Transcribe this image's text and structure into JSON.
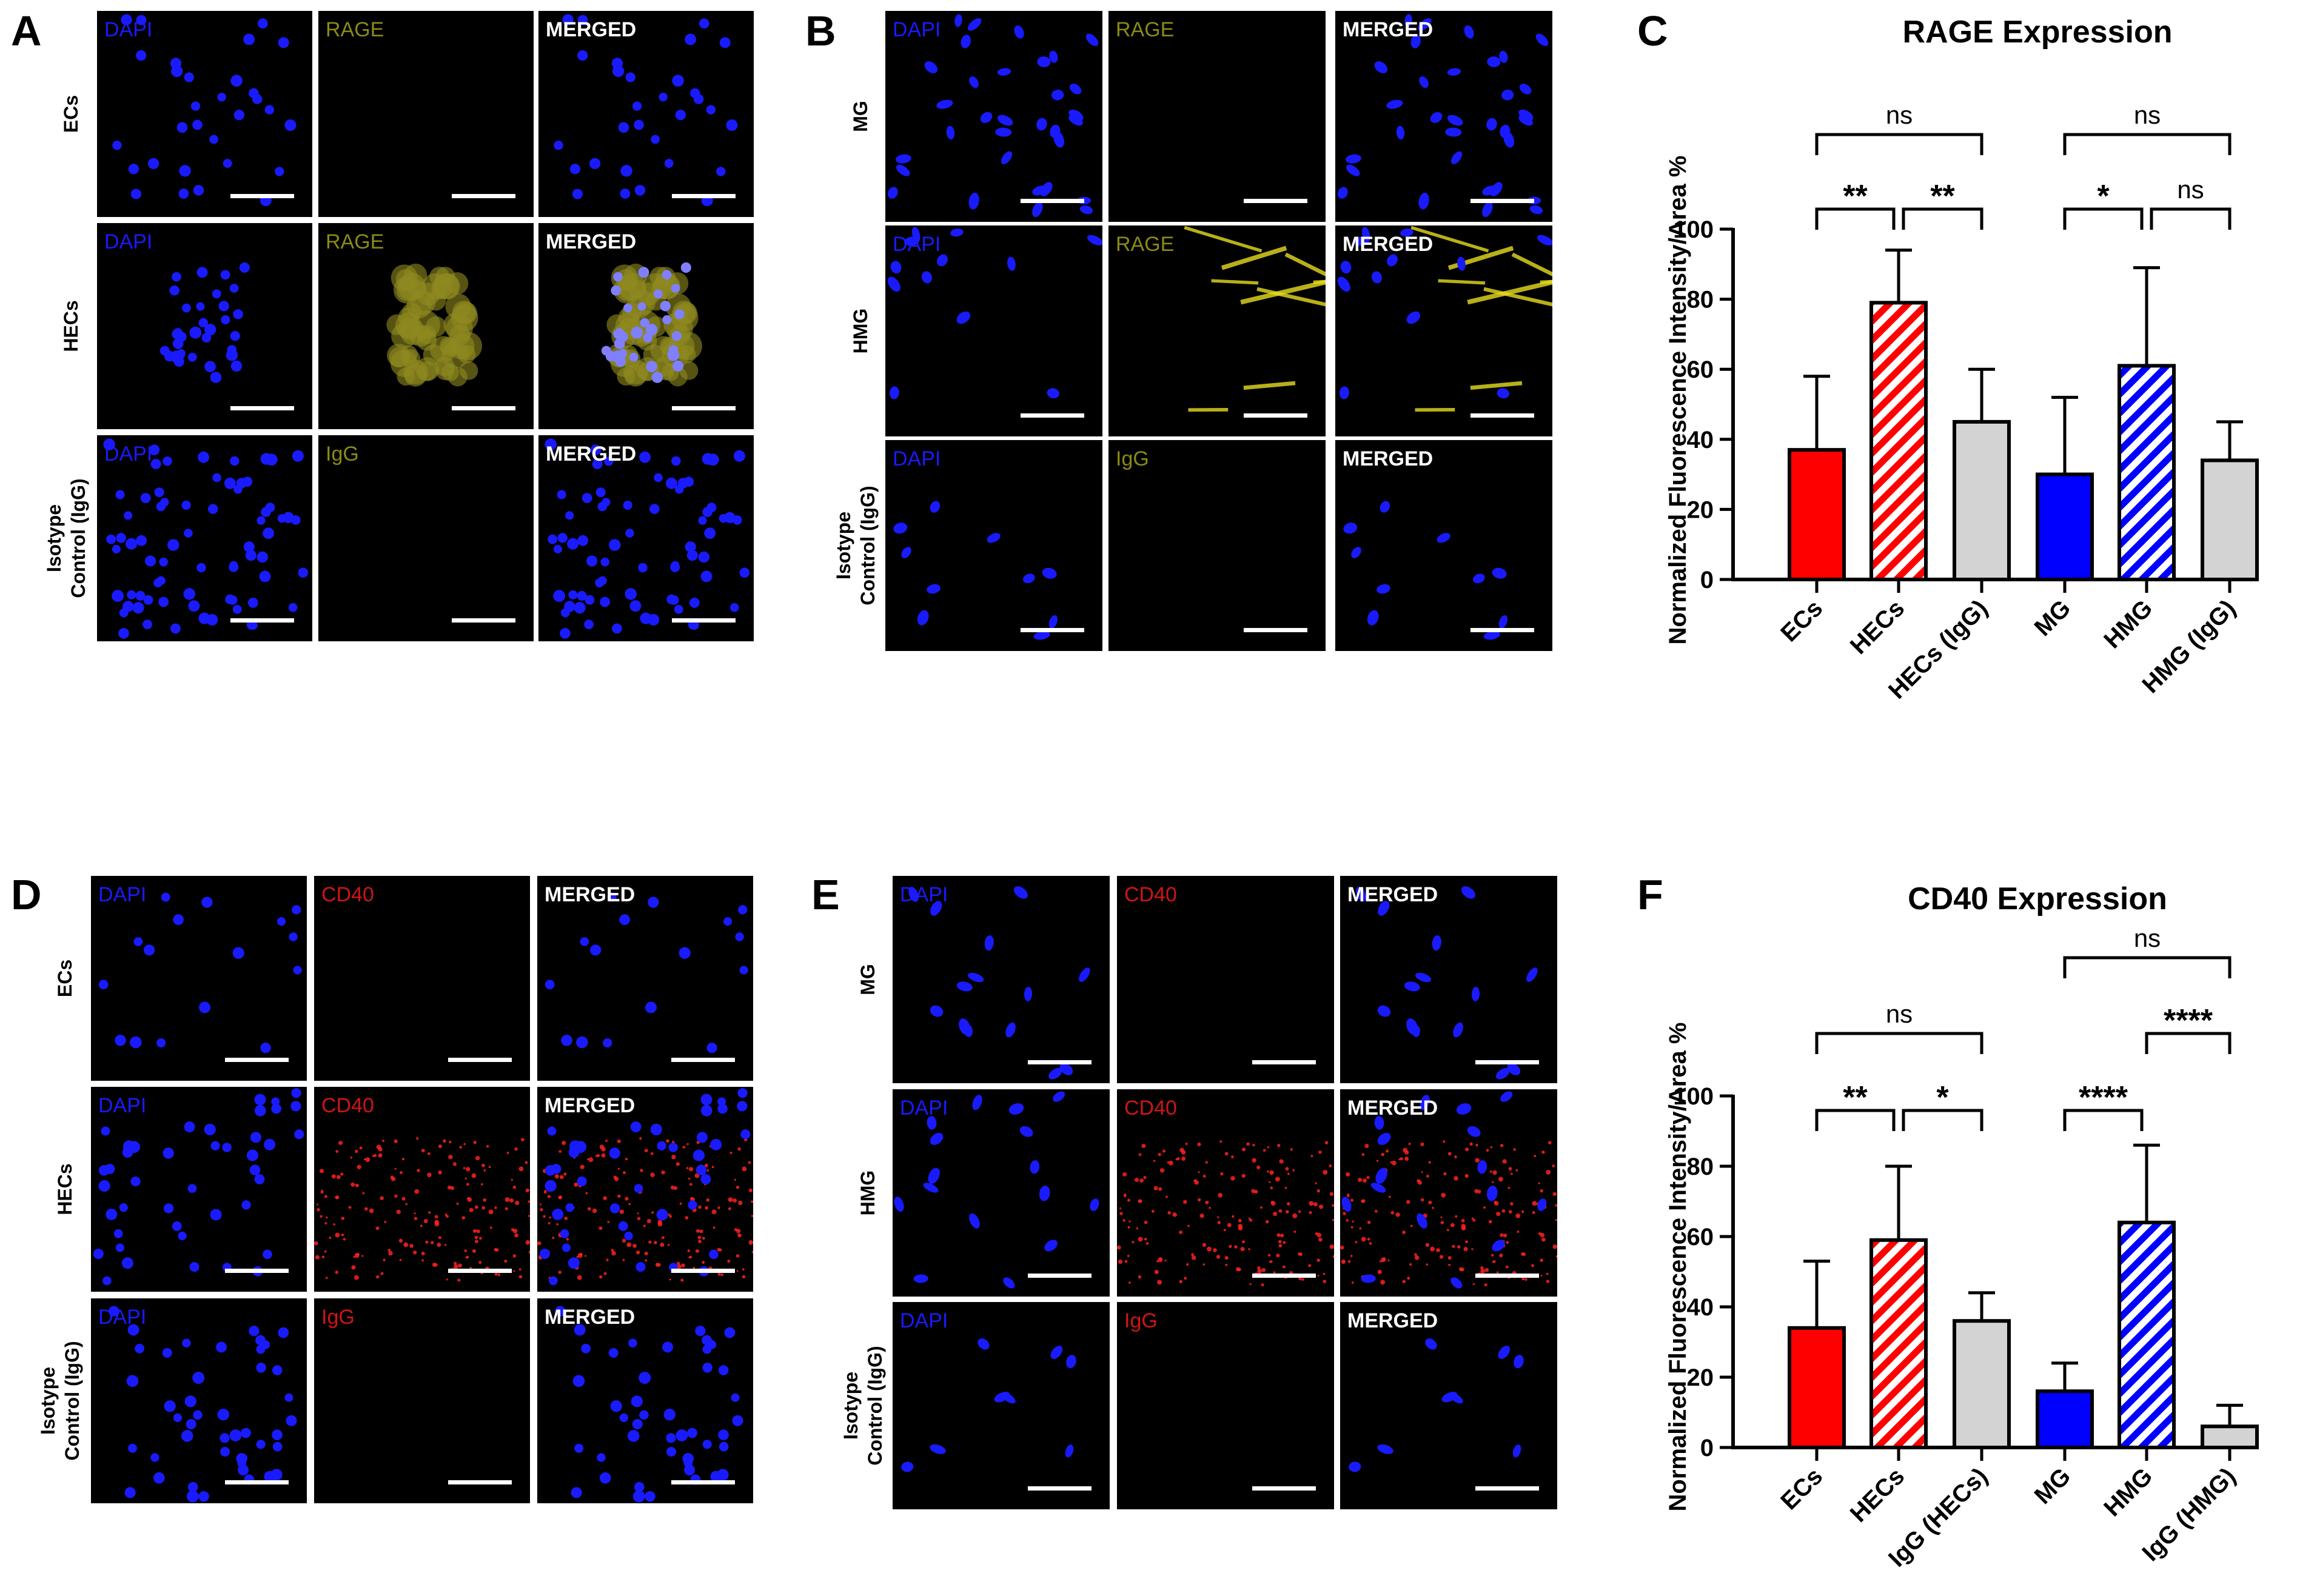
{
  "colors": {
    "dapi": "#1a1aff",
    "rage": "#8a8a16",
    "cd40": "#d01414",
    "label_white": "#ffffff",
    "bar_red": "#ff0000",
    "bar_blue": "#0000ff",
    "bar_grey": "#d3d3d3"
  },
  "panels": [
    {
      "letter": "A",
      "rows": [
        {
          "label": "ECs",
          "tiles": [
            {
              "label": "DAPI",
              "channel": "dapi",
              "dots": 30,
              "seed": 3
            },
            {
              "label": "RAGE",
              "channel": "rage",
              "dots": 0,
              "seed": 0
            },
            {
              "label": "MERGED",
              "channel": "merged",
              "dots": 30,
              "seed": 3
            }
          ]
        },
        {
          "label": "HECs",
          "tiles": [
            {
              "label": "DAPI",
              "channel": "dapi",
              "dots": 34,
              "seed": 7,
              "cluster": true
            },
            {
              "label": "RAGE",
              "channel": "rage",
              "dots": 0,
              "seed": 0,
              "stain": "cluster"
            },
            {
              "label": "MERGED",
              "channel": "merged",
              "dots": 34,
              "seed": 7,
              "cluster": true,
              "stain": "cluster"
            }
          ]
        },
        {
          "label": "Isotype Control (IgG)",
          "tiles": [
            {
              "label": "DAPI",
              "channel": "dapi",
              "dots": 70,
              "seed": 11
            },
            {
              "label": "IgG",
              "channel": "rage",
              "dots": 0,
              "seed": 0
            },
            {
              "label": "MERGED",
              "channel": "merged",
              "dots": 70,
              "seed": 11
            }
          ]
        }
      ]
    },
    {
      "letter": "B",
      "rows": [
        {
          "label": "MG",
          "tiles": [
            {
              "label": "DAPI",
              "channel": "dapi",
              "dots": 32,
              "seed": 13,
              "oval": true
            },
            {
              "label": "RAGE",
              "channel": "rage",
              "dots": 0,
              "seed": 0
            },
            {
              "label": "MERGED",
              "channel": "merged",
              "dots": 32,
              "seed": 13,
              "oval": true
            }
          ]
        },
        {
          "label": "HMG",
          "tiles": [
            {
              "label": "DAPI",
              "channel": "dapi",
              "dots": 12,
              "seed": 17,
              "oval": true
            },
            {
              "label": "RAGE",
              "channel": "rage",
              "dots": 0,
              "seed": 0,
              "stain": "streaks"
            },
            {
              "label": "MERGED",
              "channel": "merged",
              "dots": 12,
              "seed": 17,
              "oval": true,
              "stain": "streaks"
            }
          ]
        },
        {
          "label": "Isotype Control (IgG)",
          "tiles": [
            {
              "label": "DAPI",
              "channel": "dapi",
              "dots": 10,
              "seed": 19,
              "oval": true
            },
            {
              "label": "IgG",
              "channel": "rage",
              "dots": 0,
              "seed": 0
            },
            {
              "label": "MERGED",
              "channel": "merged",
              "dots": 10,
              "seed": 19,
              "oval": true
            }
          ]
        }
      ]
    },
    {
      "letter": "D",
      "rows": [
        {
          "label": "ECs",
          "tiles": [
            {
              "label": "DAPI",
              "channel": "dapi",
              "dots": 16,
              "seed": 23
            },
            {
              "label": "CD40",
              "channel": "cd40",
              "dots": 0,
              "seed": 0
            },
            {
              "label": "MERGED",
              "channel": "merged",
              "dots": 16,
              "seed": 23
            }
          ]
        },
        {
          "label": "HECs",
          "tiles": [
            {
              "label": "DAPI",
              "channel": "dapi",
              "dots": 42,
              "seed": 29
            },
            {
              "label": "CD40",
              "channel": "cd40",
              "dots": 0,
              "seed": 0,
              "stain": "speckle"
            },
            {
              "label": "MERGED",
              "channel": "merged",
              "dots": 42,
              "seed": 29,
              "stain": "speckle"
            }
          ]
        },
        {
          "label": "Isotype Control (IgG)",
          "tiles": [
            {
              "label": "DAPI",
              "channel": "dapi",
              "dots": 44,
              "seed": 31
            },
            {
              "label": "IgG",
              "channel": "cd40",
              "dots": 0,
              "seed": 0
            },
            {
              "label": "MERGED",
              "channel": "merged",
              "dots": 44,
              "seed": 31
            }
          ]
        }
      ]
    },
    {
      "letter": "E",
      "rows": [
        {
          "label": "MG",
          "tiles": [
            {
              "label": "DAPI",
              "channel": "dapi",
              "dots": 14,
              "seed": 37,
              "oval": true
            },
            {
              "label": "CD40",
              "channel": "cd40",
              "dots": 0,
              "seed": 0
            },
            {
              "label": "MERGED",
              "channel": "merged",
              "dots": 14,
              "seed": 37,
              "oval": true
            }
          ]
        },
        {
          "label": "HMG",
          "tiles": [
            {
              "label": "DAPI",
              "channel": "dapi",
              "dots": 16,
              "seed": 41,
              "oval": true
            },
            {
              "label": "CD40",
              "channel": "cd40",
              "dots": 0,
              "seed": 0,
              "stain": "speckle"
            },
            {
              "label": "MERGED",
              "channel": "merged",
              "dots": 16,
              "seed": 41,
              "oval": true,
              "stain": "speckle"
            }
          ]
        },
        {
          "label": "Isotype Control (IgG)",
          "tiles": [
            {
              "label": "DAPI",
              "channel": "dapi",
              "dots": 8,
              "seed": 43,
              "oval": true
            },
            {
              "label": "IgG",
              "channel": "cd40",
              "dots": 0,
              "seed": 0
            },
            {
              "label": "MERGED",
              "channel": "merged",
              "dots": 8,
              "seed": 43,
              "oval": true
            }
          ]
        }
      ]
    }
  ],
  "chart_data": [
    {
      "panel": "C",
      "type": "bar",
      "title": "RAGE Expression",
      "ylabel": "Normalized Fluorescence Intensity/Area %",
      "ylim": [
        0,
        100
      ],
      "yticks": [
        0,
        20,
        40,
        60,
        80,
        100
      ],
      "categories": [
        "ECs",
        "HECs",
        "HECs (IgG)",
        "MG",
        "HMG",
        "HMG (IgG)"
      ],
      "values": [
        37,
        79,
        45,
        30,
        61,
        34
      ],
      "errors": [
        21,
        15,
        15,
        22,
        28,
        11
      ],
      "fills": [
        "red",
        "red-hatch",
        "grey",
        "blue",
        "blue-hatch",
        "grey"
      ],
      "comparisons": [
        {
          "from": 0,
          "to": 2,
          "label": "ns",
          "level": 2
        },
        {
          "from": 0,
          "to": 1,
          "label": "**",
          "level": 1
        },
        {
          "from": 1,
          "to": 2,
          "label": "**",
          "level": 1
        },
        {
          "from": 3,
          "to": 5,
          "label": "ns",
          "level": 2
        },
        {
          "from": 3,
          "to": 4,
          "label": "*",
          "level": 1
        },
        {
          "from": 4,
          "to": 5,
          "label": "ns",
          "level": 1
        }
      ]
    },
    {
      "panel": "F",
      "type": "bar",
      "title": "CD40 Expression",
      "ylabel": "Normalized Fluorescence Intensity/Area %",
      "ylim": [
        0,
        100
      ],
      "yticks": [
        0,
        20,
        40,
        60,
        80,
        100
      ],
      "categories": [
        "ECs",
        "HECs",
        "IgG (HECs)",
        "MG",
        "HMG",
        "IgG (HMG)"
      ],
      "values": [
        34,
        59,
        36,
        16,
        64,
        6
      ],
      "errors": [
        19,
        21,
        8,
        8,
        22,
        6
      ],
      "fills": [
        "red",
        "red-hatch",
        "grey",
        "blue",
        "blue-hatch",
        "grey"
      ],
      "comparisons": [
        {
          "from": 0,
          "to": 2,
          "label": "ns",
          "level": 2
        },
        {
          "from": 0,
          "to": 1,
          "label": "**",
          "level": 1
        },
        {
          "from": 1,
          "to": 2,
          "label": "*",
          "level": 1
        },
        {
          "from": 3,
          "to": 5,
          "label": "ns",
          "level": 4
        },
        {
          "from": 4,
          "to": 5,
          "label": "****",
          "level": 3
        },
        {
          "from": 3,
          "to": 4,
          "label": "****",
          "level": 1
        }
      ]
    }
  ]
}
